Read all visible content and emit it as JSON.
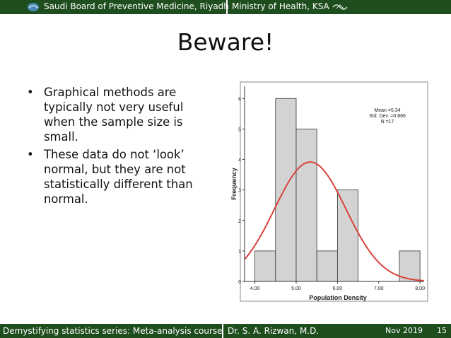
{
  "header": {
    "left_text": "Saudi Board of Preventive Medicine, Riyadh",
    "right_text": "Ministry of Health, KSA"
  },
  "slide": {
    "title": "Beware!",
    "bullets": [
      "Graphical methods are typically not very useful when the sample size is small.",
      "These data do not ‘look’ normal, but they are not statistically different than normal."
    ]
  },
  "chart_data": {
    "type": "bar",
    "categories": [
      "4.00-4.50",
      "4.50-5.00",
      "5.00-5.50",
      "5.50-6.00",
      "6.00-6.50",
      "6.50-7.00",
      "7.00-7.50",
      "7.50-8.00"
    ],
    "bin_edges": [
      4.0,
      4.5,
      5.0,
      5.5,
      6.0,
      6.5,
      7.0,
      7.5,
      8.0
    ],
    "values": [
      1,
      6,
      5,
      1,
      3,
      0,
      0,
      1
    ],
    "x_ticks": [
      "4.00",
      "5.00",
      "6.00",
      "7.00",
      "8.00"
    ],
    "y_ticks": [
      "0",
      "1",
      "2",
      "3",
      "4",
      "5",
      "6"
    ],
    "xlabel": "Population Density",
    "ylabel": "Frequency",
    "xlim": [
      3.75,
      8.1
    ],
    "ylim": [
      0,
      6.4
    ],
    "annotation": [
      "Mean =5.34",
      "Std. Dev. =0.866",
      "N =17"
    ],
    "normal_curve": {
      "mean": 5.34,
      "sd": 0.866,
      "n": 17,
      "bin_width": 0.5,
      "color": "#d9423c"
    },
    "bar_color": "#d3d3d3",
    "grid": false
  },
  "footer": {
    "course": "Demystifying statistics series: Meta-analysis course",
    "author": "Dr. S. A. Rizwan, M.D.",
    "date": "Nov 2019",
    "page": "15"
  },
  "colors": {
    "bar_bg": "#1e4d1e",
    "text": "#111111"
  },
  "icons": {
    "left_logo": "saudi-board-logo-icon",
    "right_logo": "ministry-logo-icon"
  }
}
